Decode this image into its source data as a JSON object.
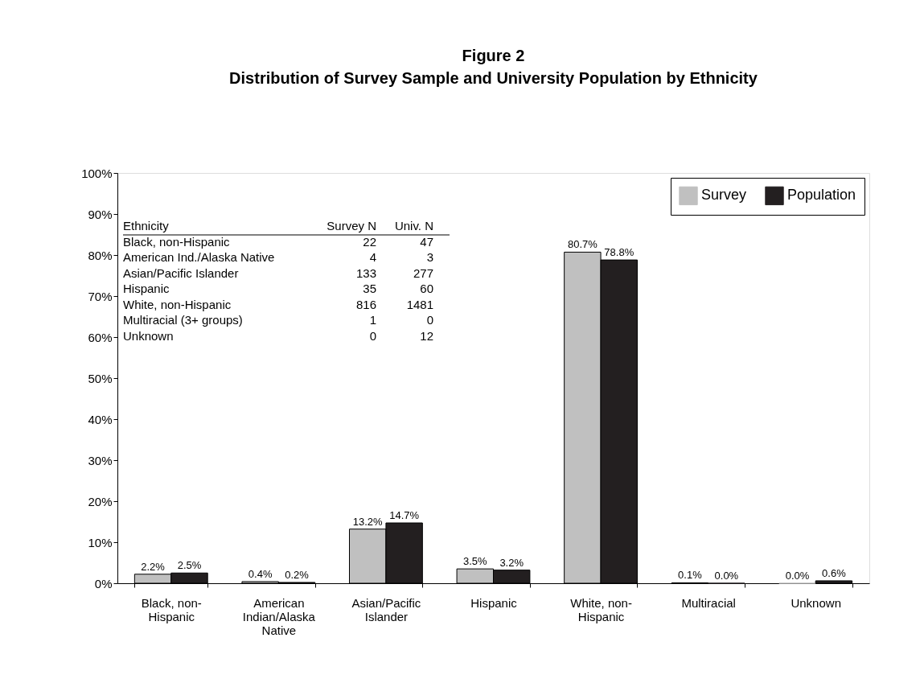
{
  "chart_data": {
    "type": "bar",
    "title": "Figure 2",
    "subtitle": "Distribution of Survey Sample and University Population by Ethnicity",
    "categories": [
      "Black, non-\nHispanic",
      "American\nIndian/Alaska\nNative",
      "Asian/Pacific\nIslander",
      "Hispanic",
      "White, non-\nHispanic",
      "Multiracial",
      "Unknown"
    ],
    "series": [
      {
        "name": "Survey",
        "color": "#c0c0c0",
        "values": [
          2.2,
          0.4,
          13.2,
          3.5,
          80.7,
          0.1,
          0.0
        ],
        "value_labels": [
          "2.2%",
          "0.4%",
          "13.2%",
          "3.5%",
          "80.7%",
          "0.1%",
          "0.0%"
        ]
      },
      {
        "name": "Population",
        "color": "#231f20",
        "values": [
          2.5,
          0.2,
          14.7,
          3.2,
          78.8,
          0.0,
          0.6
        ],
        "value_labels": [
          "2.5%",
          "0.2%",
          "14.7%",
          "3.2%",
          "78.8%",
          "0.0%",
          "0.6%"
        ]
      }
    ],
    "ylim": [
      0,
      100
    ],
    "yticks": [
      {
        "value": 0,
        "label": "0%"
      },
      {
        "value": 10,
        "label": "10%"
      },
      {
        "value": 20,
        "label": "20%"
      },
      {
        "value": 30,
        "label": "30%"
      },
      {
        "value": 40,
        "label": "40%"
      },
      {
        "value": 50,
        "label": "50%"
      },
      {
        "value": 60,
        "label": "60%"
      },
      {
        "value": 70,
        "label": "70%"
      },
      {
        "value": 80,
        "label": "80%"
      },
      {
        "value": 90,
        "label": "90%"
      },
      {
        "value": 100,
        "label": "100%"
      }
    ],
    "legend": "top right",
    "grid": false,
    "annotations": [
      "Ethnicity",
      "Survey N",
      "Univ. N",
      "Black, non-Hispanic",
      "22",
      "47",
      "American Ind./Alaska Native",
      "4",
      "3",
      "Asian/Pacific Islander",
      "133",
      "277",
      "Hispanic",
      "35",
      "60",
      "White, non-Hispanic",
      "816",
      "1481",
      "Multiracial (3+ groups)",
      "1",
      "0",
      "Unknown",
      "0",
      "12"
    ]
  }
}
